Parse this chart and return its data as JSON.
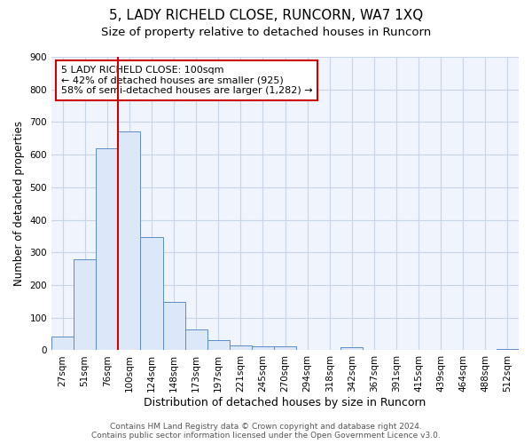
{
  "title": "5, LADY RICHELD CLOSE, RUNCORN, WA7 1XQ",
  "subtitle": "Size of property relative to detached houses in Runcorn",
  "xlabel": "Distribution of detached houses by size in Runcorn",
  "ylabel": "Number of detached properties",
  "bar_labels": [
    "27sqm",
    "51sqm",
    "76sqm",
    "100sqm",
    "124sqm",
    "148sqm",
    "173sqm",
    "197sqm",
    "221sqm",
    "245sqm",
    "270sqm",
    "294sqm",
    "318sqm",
    "342sqm",
    "367sqm",
    "391sqm",
    "415sqm",
    "439sqm",
    "464sqm",
    "488sqm",
    "512sqm"
  ],
  "bar_values": [
    43,
    280,
    620,
    670,
    348,
    148,
    65,
    30,
    15,
    12,
    12,
    0,
    0,
    10,
    0,
    0,
    0,
    0,
    0,
    0,
    5
  ],
  "property_line_index": 3,
  "annotation_text": "5 LADY RICHELD CLOSE: 100sqm\n← 42% of detached houses are smaller (925)\n58% of semi-detached houses are larger (1,282) →",
  "bar_color": "#dce8f8",
  "bar_edge_color": "#5b8cc8",
  "line_color": "#cc0000",
  "annotation_box_color": "#cc0000",
  "grid_color": "#c8d4e8",
  "ylim": [
    0,
    900
  ],
  "yticks": [
    0,
    100,
    200,
    300,
    400,
    500,
    600,
    700,
    800,
    900
  ],
  "footer_text": "Contains HM Land Registry data © Crown copyright and database right 2024.\nContains public sector information licensed under the Open Government Licence v3.0.",
  "title_fontsize": 11,
  "subtitle_fontsize": 9.5,
  "xlabel_fontsize": 9,
  "ylabel_fontsize": 8.5,
  "tick_fontsize": 7.5,
  "annotation_fontsize": 8,
  "footer_fontsize": 6.5
}
